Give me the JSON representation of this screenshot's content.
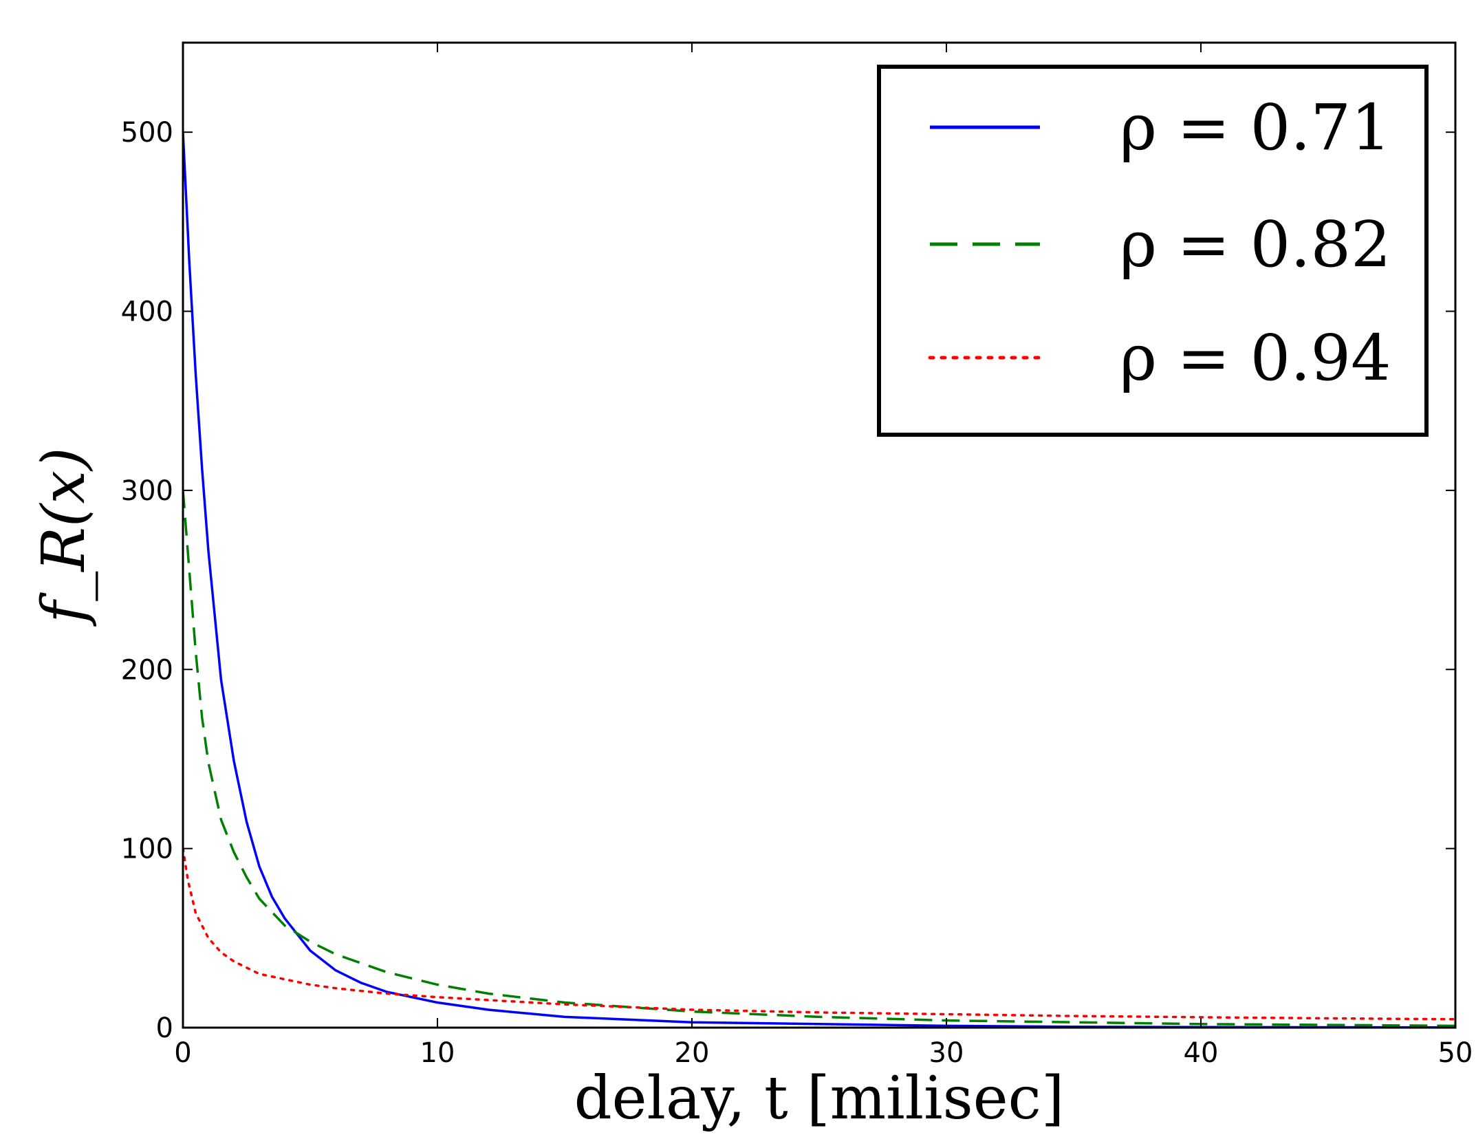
{
  "chart_data": {
    "type": "line",
    "xlabel": "delay, t [milisec]",
    "ylabel": "f_R(x)",
    "xlim": [
      0,
      50
    ],
    "ylim": [
      0,
      550
    ],
    "xticks": [
      0,
      10,
      20,
      30,
      40,
      50
    ],
    "yticks": [
      0,
      100,
      200,
      300,
      400,
      500
    ],
    "grid": false,
    "legend_position": "top-right",
    "series": [
      {
        "name": "ρ = 0.71",
        "color": "#0000ff",
        "style": "solid",
        "x": [
          0,
          0.25,
          0.5,
          0.75,
          1,
          1.5,
          2,
          2.5,
          3,
          3.5,
          4,
          5,
          6,
          7,
          8,
          10,
          12,
          15,
          20,
          25,
          30,
          35,
          40,
          45,
          50
        ],
        "y": [
          500,
          427,
          365,
          312,
          266,
          194,
          149,
          115,
          90,
          73,
          61,
          43,
          32,
          25,
          20,
          14,
          10,
          6,
          3,
          2,
          1,
          0.5,
          0.3,
          0.2,
          0.1
        ]
      },
      {
        "name": "ρ = 0.82",
        "color": "#008000",
        "style": "dashed",
        "x": [
          0,
          0.25,
          0.5,
          0.75,
          1,
          1.5,
          2,
          2.5,
          3,
          4,
          5,
          6,
          8,
          10,
          12,
          15,
          20,
          25,
          30,
          35,
          40,
          45,
          50
        ],
        "y": [
          300,
          255,
          210,
          173,
          148,
          116,
          98,
          84,
          72,
          57,
          48,
          41,
          31,
          24,
          19,
          14,
          9,
          6,
          4,
          3,
          2,
          1.5,
          1
        ]
      },
      {
        "name": "ρ = 0.94",
        "color": "#ff0000",
        "style": "dotted",
        "x": [
          0,
          0.2,
          0.5,
          1,
          1.5,
          2,
          3,
          4,
          5,
          6,
          8,
          10,
          15,
          20,
          25,
          30,
          35,
          40,
          45,
          50
        ],
        "y": [
          100,
          82,
          64,
          50,
          42,
          37,
          30,
          27,
          24,
          22,
          19,
          17,
          13,
          10,
          8.5,
          7.5,
          6.5,
          5.8,
          5.2,
          4.7
        ]
      }
    ]
  }
}
